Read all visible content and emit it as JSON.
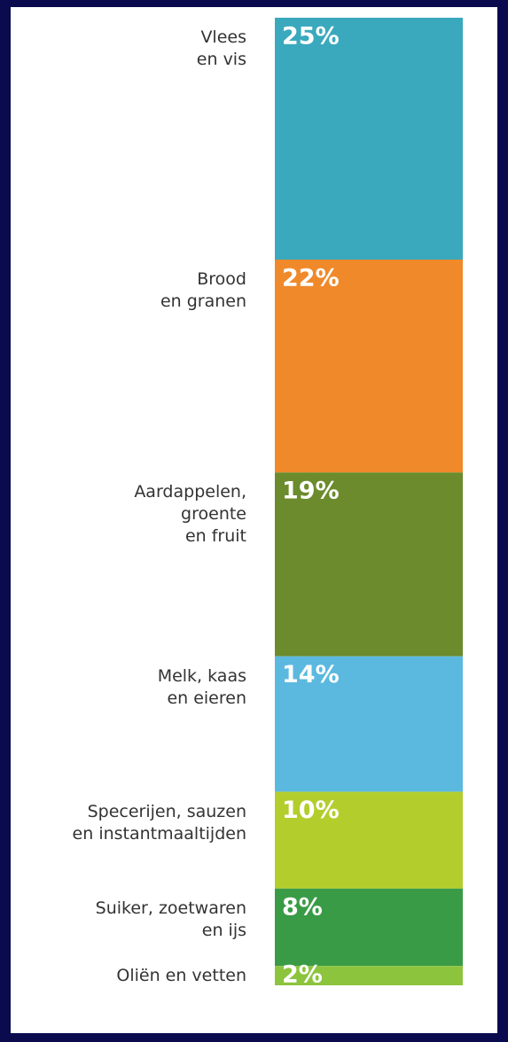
{
  "chart_data": {
    "type": "stacked-column",
    "categories": [
      "Vlees\nen vis",
      "Brood\nen granen",
      "Aardappelen,\ngroente\nen fruit",
      "Melk, kaas\nen eieren",
      "Specerijen, sauzen\nen instantmaaltijden",
      "Suiker, zoetwaren\nen ijs",
      "Oliën en vetten"
    ],
    "values": [
      25,
      22,
      19,
      14,
      10,
      8,
      2
    ],
    "value_labels": [
      "25%",
      "22%",
      "19%",
      "14%",
      "10%",
      "8%",
      "2%"
    ],
    "colors": [
      "#3aa9bd",
      "#f0892a",
      "#6b8b2c",
      "#5bb9df",
      "#b3ce2c",
      "#3a9b46",
      "#8cc43e"
    ]
  }
}
